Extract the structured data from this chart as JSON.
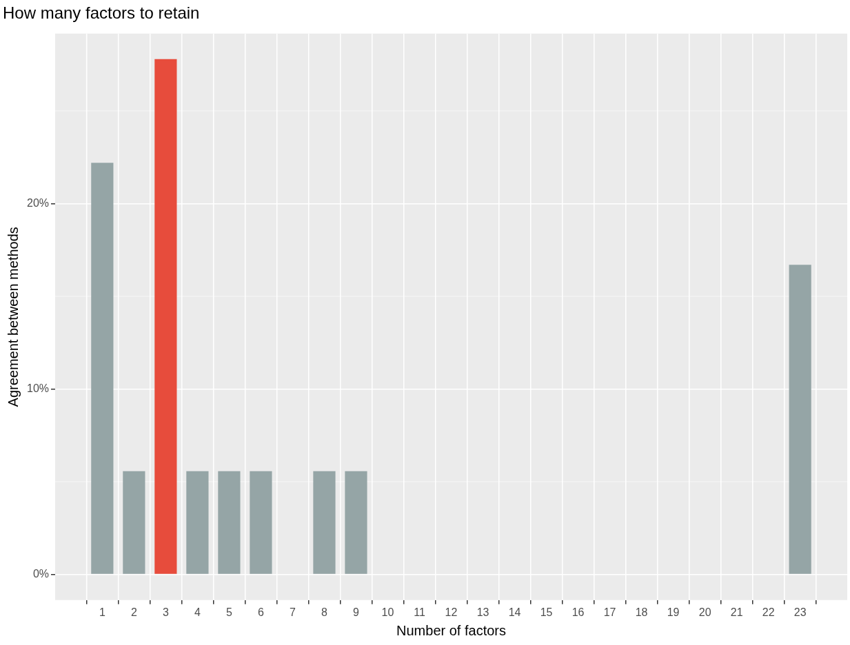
{
  "chart_data": {
    "type": "bar",
    "title": "How many factors to retain",
    "xlabel": "Number of factors",
    "ylabel": "Agreement between methods",
    "x": [
      1,
      2,
      3,
      4,
      5,
      6,
      7,
      8,
      9,
      10,
      11,
      12,
      13,
      14,
      15,
      16,
      17,
      18,
      19,
      20,
      21,
      22,
      23
    ],
    "values": [
      22.2,
      5.56,
      27.8,
      5.56,
      5.56,
      5.56,
      null,
      5.56,
      5.56,
      null,
      null,
      null,
      null,
      null,
      null,
      null,
      null,
      null,
      null,
      null,
      null,
      null,
      16.7
    ],
    "colors": [
      "#95a5a6",
      "#95a5a6",
      "#e74c3c",
      "#95a5a6",
      "#95a5a6",
      "#95a5a6",
      "#95a5a6",
      "#95a5a6",
      "#95a5a6",
      "#95a5a6",
      "#95a5a6",
      "#95a5a6",
      "#95a5a6",
      "#95a5a6",
      "#95a5a6",
      "#95a5a6",
      "#95a5a6",
      "#95a5a6",
      "#95a5a6",
      "#95a5a6",
      "#95a5a6",
      "#95a5a6",
      "#95a5a6"
    ],
    "xlim": [
      -0.485,
      24.485
    ],
    "xticks": [
      1,
      2,
      3,
      4,
      5,
      6,
      7,
      8,
      9,
      10,
      11,
      12,
      13,
      14,
      15,
      16,
      17,
      18,
      19,
      20,
      21,
      22,
      23
    ],
    "ylim": [
      -1.39,
      29.17
    ],
    "yticks": [
      {
        "value": 0,
        "label": "0%"
      },
      {
        "value": 10,
        "label": "10%"
      },
      {
        "value": 20,
        "label": "20%"
      }
    ],
    "grid": true,
    "legend": false
  }
}
